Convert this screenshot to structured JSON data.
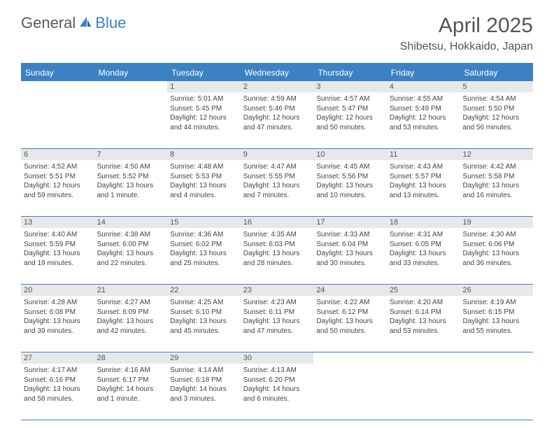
{
  "logo": {
    "word1": "General",
    "word2": "Blue"
  },
  "title": "April 2025",
  "location": "Shibetsu, Hokkaido, Japan",
  "weekdays": [
    "Sunday",
    "Monday",
    "Tuesday",
    "Wednesday",
    "Thursday",
    "Friday",
    "Saturday"
  ],
  "colors": {
    "header_bar": "#3b82c4",
    "daynum_bg": "#e8e8e8",
    "text": "#444444"
  },
  "weeks": [
    [
      {
        "n": "",
        "lines": []
      },
      {
        "n": "",
        "lines": []
      },
      {
        "n": "1",
        "lines": [
          "Sunrise: 5:01 AM",
          "Sunset: 5:45 PM",
          "Daylight: 12 hours",
          "and 44 minutes."
        ]
      },
      {
        "n": "2",
        "lines": [
          "Sunrise: 4:59 AM",
          "Sunset: 5:46 PM",
          "Daylight: 12 hours",
          "and 47 minutes."
        ]
      },
      {
        "n": "3",
        "lines": [
          "Sunrise: 4:57 AM",
          "Sunset: 5:47 PM",
          "Daylight: 12 hours",
          "and 50 minutes."
        ]
      },
      {
        "n": "4",
        "lines": [
          "Sunrise: 4:55 AM",
          "Sunset: 5:49 PM",
          "Daylight: 12 hours",
          "and 53 minutes."
        ]
      },
      {
        "n": "5",
        "lines": [
          "Sunrise: 4:54 AM",
          "Sunset: 5:50 PM",
          "Daylight: 12 hours",
          "and 56 minutes."
        ]
      }
    ],
    [
      {
        "n": "6",
        "lines": [
          "Sunrise: 4:52 AM",
          "Sunset: 5:51 PM",
          "Daylight: 12 hours",
          "and 59 minutes."
        ]
      },
      {
        "n": "7",
        "lines": [
          "Sunrise: 4:50 AM",
          "Sunset: 5:52 PM",
          "Daylight: 13 hours",
          "and 1 minute."
        ]
      },
      {
        "n": "8",
        "lines": [
          "Sunrise: 4:48 AM",
          "Sunset: 5:53 PM",
          "Daylight: 13 hours",
          "and 4 minutes."
        ]
      },
      {
        "n": "9",
        "lines": [
          "Sunrise: 4:47 AM",
          "Sunset: 5:55 PM",
          "Daylight: 13 hours",
          "and 7 minutes."
        ]
      },
      {
        "n": "10",
        "lines": [
          "Sunrise: 4:45 AM",
          "Sunset: 5:56 PM",
          "Daylight: 13 hours",
          "and 10 minutes."
        ]
      },
      {
        "n": "11",
        "lines": [
          "Sunrise: 4:43 AM",
          "Sunset: 5:57 PM",
          "Daylight: 13 hours",
          "and 13 minutes."
        ]
      },
      {
        "n": "12",
        "lines": [
          "Sunrise: 4:42 AM",
          "Sunset: 5:58 PM",
          "Daylight: 13 hours",
          "and 16 minutes."
        ]
      }
    ],
    [
      {
        "n": "13",
        "lines": [
          "Sunrise: 4:40 AM",
          "Sunset: 5:59 PM",
          "Daylight: 13 hours",
          "and 19 minutes."
        ]
      },
      {
        "n": "14",
        "lines": [
          "Sunrise: 4:38 AM",
          "Sunset: 6:00 PM",
          "Daylight: 13 hours",
          "and 22 minutes."
        ]
      },
      {
        "n": "15",
        "lines": [
          "Sunrise: 4:36 AM",
          "Sunset: 6:02 PM",
          "Daylight: 13 hours",
          "and 25 minutes."
        ]
      },
      {
        "n": "16",
        "lines": [
          "Sunrise: 4:35 AM",
          "Sunset: 6:03 PM",
          "Daylight: 13 hours",
          "and 28 minutes."
        ]
      },
      {
        "n": "17",
        "lines": [
          "Sunrise: 4:33 AM",
          "Sunset: 6:04 PM",
          "Daylight: 13 hours",
          "and 30 minutes."
        ]
      },
      {
        "n": "18",
        "lines": [
          "Sunrise: 4:31 AM",
          "Sunset: 6:05 PM",
          "Daylight: 13 hours",
          "and 33 minutes."
        ]
      },
      {
        "n": "19",
        "lines": [
          "Sunrise: 4:30 AM",
          "Sunset: 6:06 PM",
          "Daylight: 13 hours",
          "and 36 minutes."
        ]
      }
    ],
    [
      {
        "n": "20",
        "lines": [
          "Sunrise: 4:28 AM",
          "Sunset: 6:08 PM",
          "Daylight: 13 hours",
          "and 39 minutes."
        ]
      },
      {
        "n": "21",
        "lines": [
          "Sunrise: 4:27 AM",
          "Sunset: 6:09 PM",
          "Daylight: 13 hours",
          "and 42 minutes."
        ]
      },
      {
        "n": "22",
        "lines": [
          "Sunrise: 4:25 AM",
          "Sunset: 6:10 PM",
          "Daylight: 13 hours",
          "and 45 minutes."
        ]
      },
      {
        "n": "23",
        "lines": [
          "Sunrise: 4:23 AM",
          "Sunset: 6:11 PM",
          "Daylight: 13 hours",
          "and 47 minutes."
        ]
      },
      {
        "n": "24",
        "lines": [
          "Sunrise: 4:22 AM",
          "Sunset: 6:12 PM",
          "Daylight: 13 hours",
          "and 50 minutes."
        ]
      },
      {
        "n": "25",
        "lines": [
          "Sunrise: 4:20 AM",
          "Sunset: 6:14 PM",
          "Daylight: 13 hours",
          "and 53 minutes."
        ]
      },
      {
        "n": "26",
        "lines": [
          "Sunrise: 4:19 AM",
          "Sunset: 6:15 PM",
          "Daylight: 13 hours",
          "and 55 minutes."
        ]
      }
    ],
    [
      {
        "n": "27",
        "lines": [
          "Sunrise: 4:17 AM",
          "Sunset: 6:16 PM",
          "Daylight: 13 hours",
          "and 58 minutes."
        ]
      },
      {
        "n": "28",
        "lines": [
          "Sunrise: 4:16 AM",
          "Sunset: 6:17 PM",
          "Daylight: 14 hours",
          "and 1 minute."
        ]
      },
      {
        "n": "29",
        "lines": [
          "Sunrise: 4:14 AM",
          "Sunset: 6:18 PM",
          "Daylight: 14 hours",
          "and 3 minutes."
        ]
      },
      {
        "n": "30",
        "lines": [
          "Sunrise: 4:13 AM",
          "Sunset: 6:20 PM",
          "Daylight: 14 hours",
          "and 6 minutes."
        ]
      },
      {
        "n": "",
        "lines": []
      },
      {
        "n": "",
        "lines": []
      },
      {
        "n": "",
        "lines": []
      }
    ]
  ]
}
